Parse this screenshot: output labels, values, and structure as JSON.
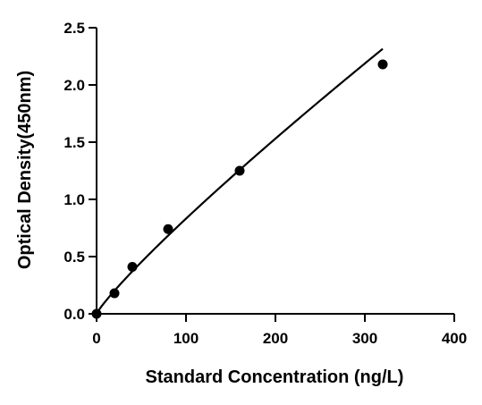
{
  "chart_data": {
    "type": "scatter",
    "title": "",
    "xlabel": "Standard Concentration (ng/L)",
    "ylabel": "Optical Density(450nm)",
    "xlim": [
      0,
      400
    ],
    "ylim": [
      0,
      2.5
    ],
    "x_ticks": [
      "0",
      "100",
      "200",
      "300",
      "400"
    ],
    "y_ticks": [
      "0.0",
      "0.5",
      "1.0",
      "1.5",
      "2.0",
      "2.5"
    ],
    "grid": false,
    "legend": "none",
    "fit_curve": true,
    "series": [
      {
        "x": [
          0,
          20,
          40,
          80,
          160,
          320
        ],
        "y": [
          0.0,
          0.18,
          0.41,
          0.74,
          1.25,
          2.18
        ]
      }
    ],
    "colors": {
      "points": "#000000",
      "curve": "#000000",
      "axes": "#000000"
    }
  }
}
